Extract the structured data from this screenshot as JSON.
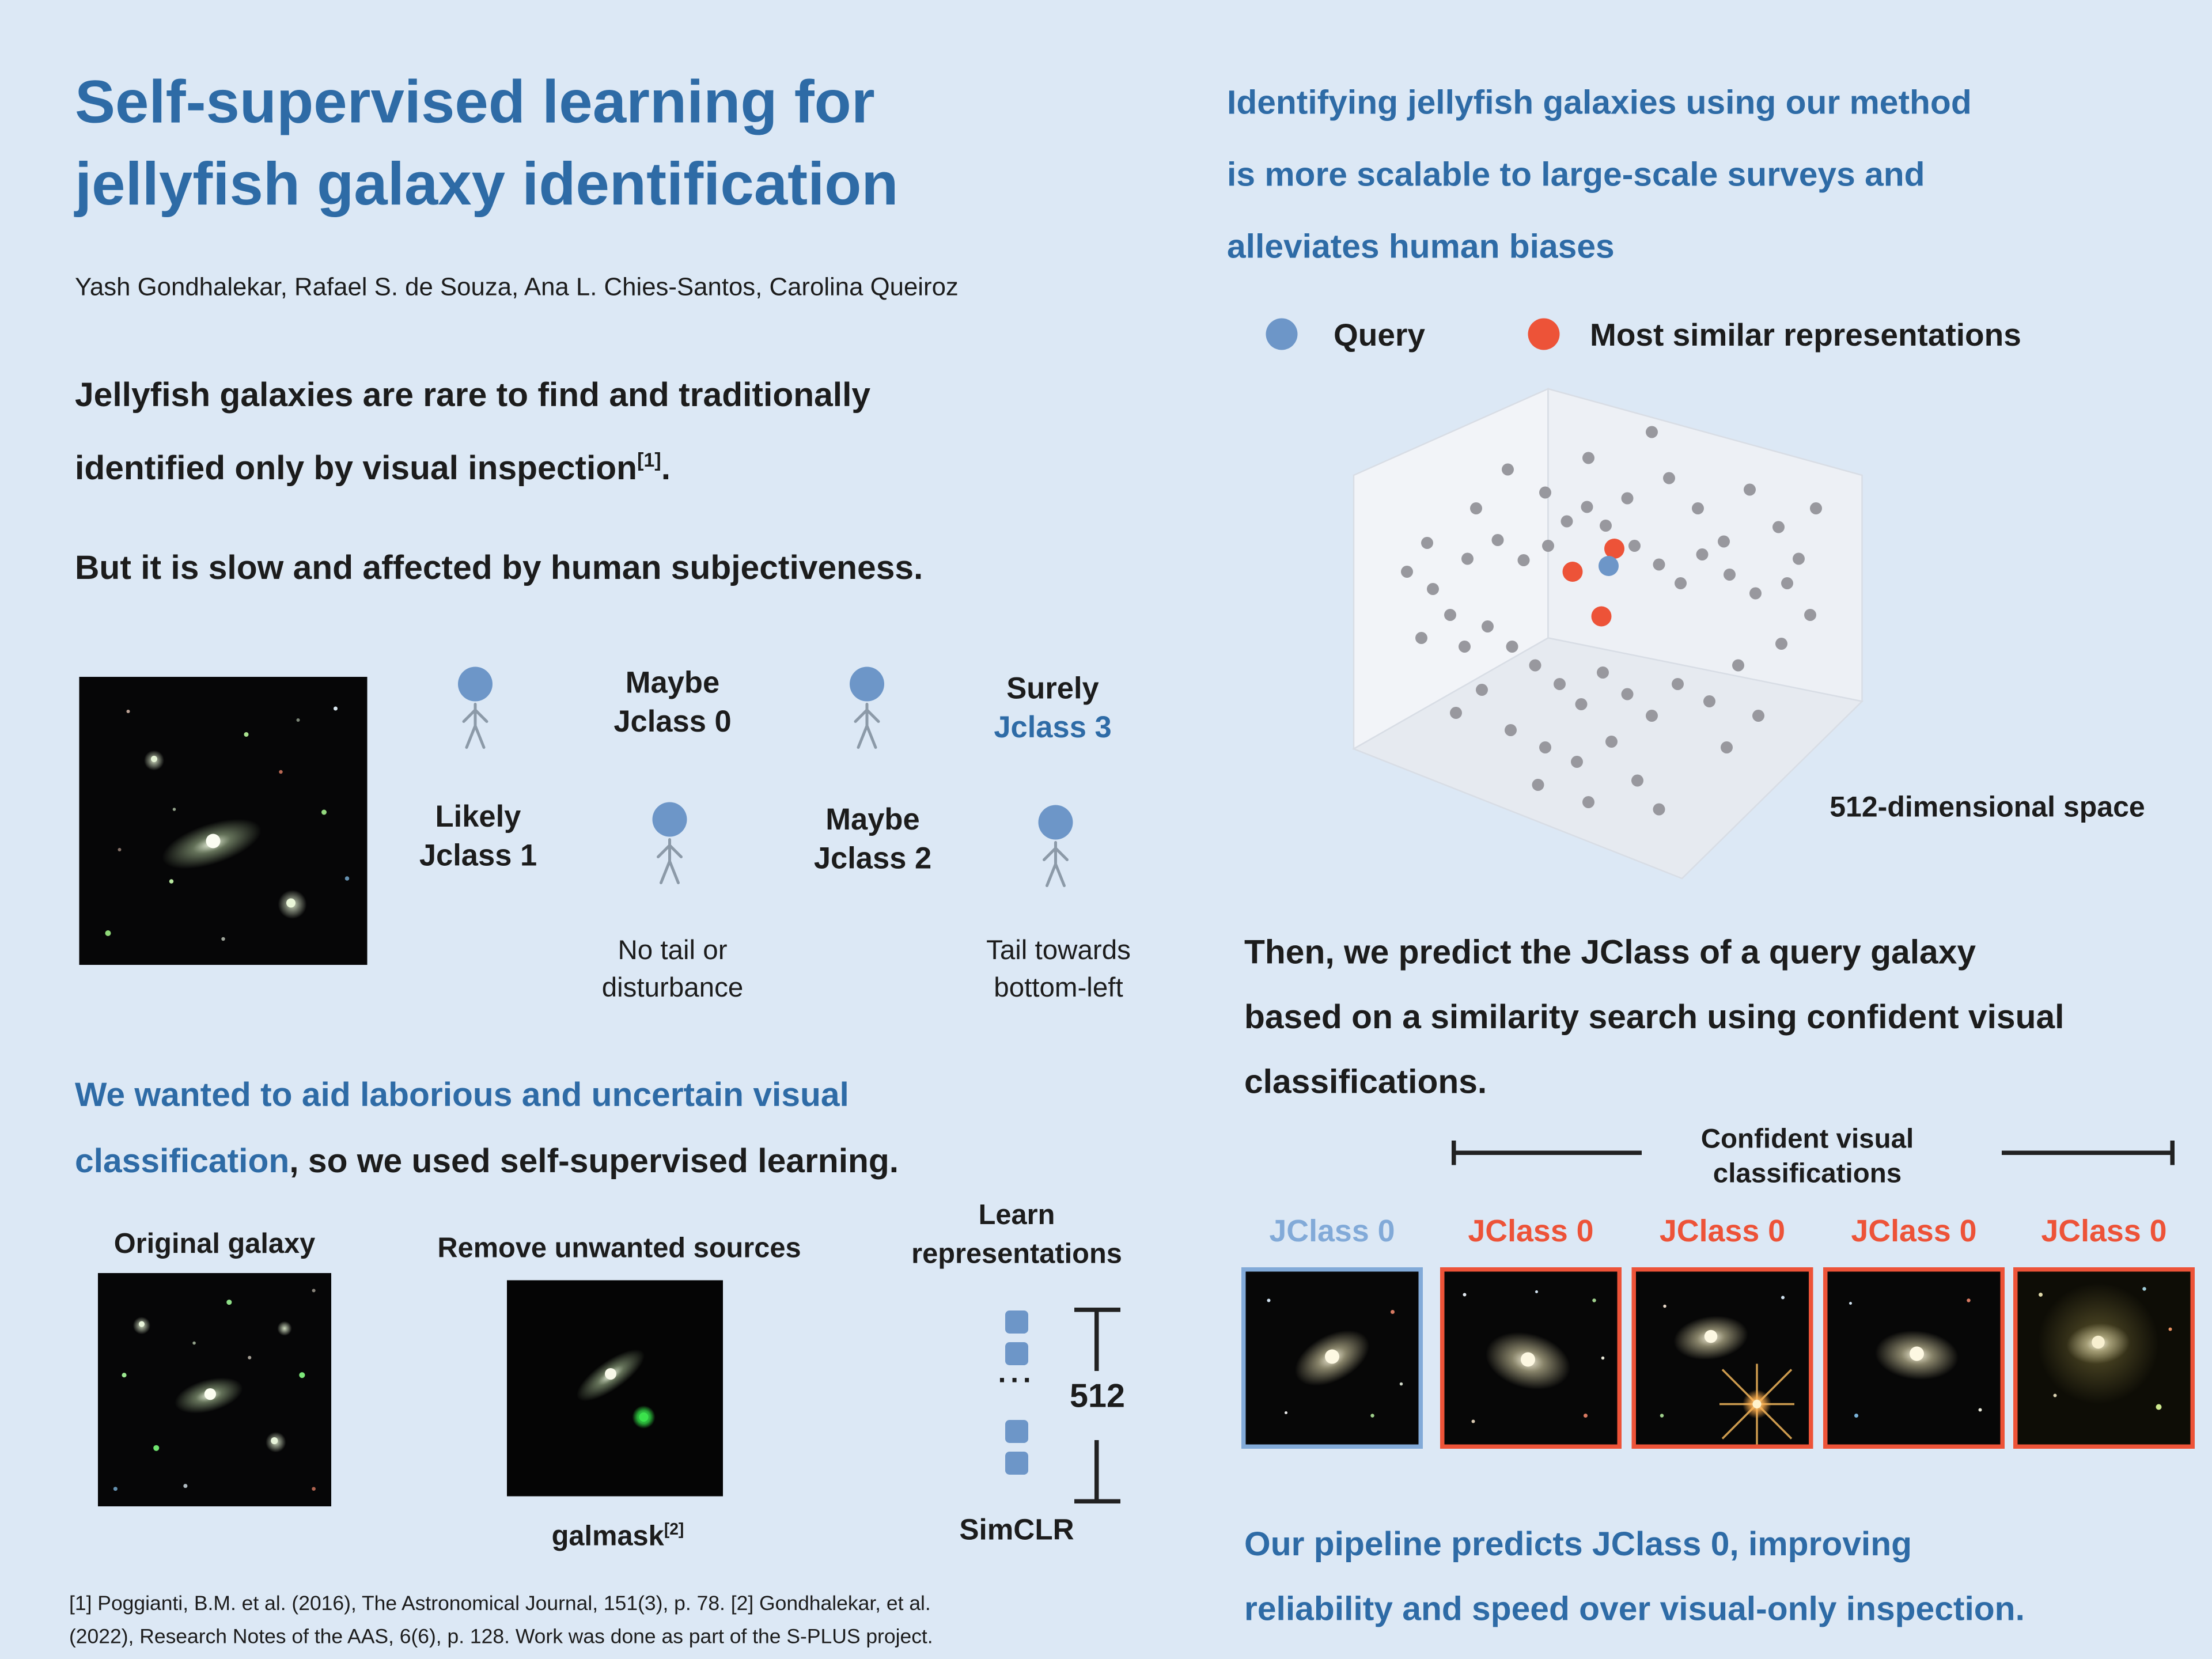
{
  "colors": {
    "background": "#dce8f5",
    "accent_blue": "#2e6ba6",
    "marker_blue": "#6d96c8",
    "marker_orange": "#ed5338",
    "light_blue": "#82aad8",
    "text_dark": "#1c1c1c"
  },
  "left": {
    "title": "Self-supervised learning for\njellyfish galaxy identification",
    "authors": "Yash Gondhalekar, Rafael S. de Souza, Ana L. Chies-Santos, Carolina Queiroz",
    "intro": {
      "text": "Jellyfish galaxies are rare to find and traditionally\nidentified only by visual inspection",
      "ref": "[1]",
      "tail": "."
    },
    "subjectiveness": "But it is slow and affected by human subjectiveness.",
    "annotators": {
      "label_row1_a": "Maybe\nJclass 0",
      "label_row1_b_line1": "Surely",
      "label_row1_b_line2": "Jclass 3",
      "label_row2_a": "Likely\nJclass 1",
      "label_row2_b": "Maybe\nJclass 2",
      "caption_a": "No tail or\ndisturbance",
      "caption_b": "Tail towards\nbottom-left"
    },
    "claim": {
      "highlight": "We wanted to aid laborious and uncertain visual\nclassification",
      "rest": ", so we used self-supervised learning."
    },
    "pipeline": {
      "step1_label": "Original galaxy",
      "step2_label": "Remove unwanted sources",
      "step2_tool": "galmask",
      "step2_ref": "[2]",
      "step3_label": "Learn\nrepresentations",
      "ellipsis": "···",
      "dimension": "512",
      "method": "SimCLR"
    },
    "footnote": "[1] Poggianti, B.M. et al. (2016), The Astronomical Journal, 151(3), p. 78. [2] Gondhalekar, et al.\n(2022), Research Notes of the AAS, 6(6), p. 128. Work was done as part of the S-PLUS project."
  },
  "right": {
    "heading": "Identifying jellyfish galaxies using our method\nis more scalable to large-scale surveys and\nalleviates human biases",
    "legend": {
      "query": "Query",
      "similar": "Most similar representations"
    },
    "embedding": {
      "space_label": "512-dimensional space",
      "gray_points": [
        [
          130,
          95
        ],
        [
          152,
          68
        ],
        [
          178,
          84
        ],
        [
          208,
          60
        ],
        [
          252,
          42
        ],
        [
          235,
          88
        ],
        [
          264,
          74
        ],
        [
          284,
          95
        ],
        [
          302,
          118
        ],
        [
          320,
          82
        ],
        [
          340,
          108
        ],
        [
          354,
          130
        ],
        [
          366,
          95
        ],
        [
          124,
          130
        ],
        [
          145,
          117
        ],
        [
          163,
          131
        ],
        [
          180,
          121
        ],
        [
          193,
          104
        ],
        [
          207,
          94
        ],
        [
          220,
          107
        ],
        [
          240,
          121
        ],
        [
          257,
          134
        ],
        [
          272,
          147
        ],
        [
          287,
          127
        ],
        [
          306,
          141
        ],
        [
          324,
          154
        ],
        [
          346,
          147
        ],
        [
          100,
          151
        ],
        [
          112,
          169
        ],
        [
          92,
          185
        ],
        [
          122,
          191
        ],
        [
          138,
          177
        ],
        [
          155,
          191
        ],
        [
          171,
          204
        ],
        [
          188,
          217
        ],
        [
          203,
          231
        ],
        [
          218,
          209
        ],
        [
          235,
          224
        ],
        [
          252,
          239
        ],
        [
          270,
          217
        ],
        [
          292,
          229
        ],
        [
          312,
          204
        ],
        [
          154,
          249
        ],
        [
          178,
          261
        ],
        [
          200,
          271
        ],
        [
          224,
          257
        ],
        [
          242,
          284
        ],
        [
          208,
          299
        ],
        [
          257,
          304
        ],
        [
          173,
          287
        ],
        [
          134,
          221
        ],
        [
          116,
          237
        ],
        [
          304,
          261
        ],
        [
          326,
          239
        ],
        [
          342,
          189
        ],
        [
          362,
          169
        ],
        [
          96,
          119
        ],
        [
          82,
          139
        ]
      ],
      "query_point": [
        222,
        135
      ],
      "similar_points": [
        [
          197,
          139
        ],
        [
          226,
          123
        ],
        [
          217,
          170
        ]
      ]
    },
    "predict_text": "Then, we predict the JClass of a query galaxy\nbased on a similarity search using confident visual\nclassifications.",
    "confident_label": "Confident visual\nclassifications",
    "jclass_labels": [
      "JClass 0",
      "JClass 0",
      "JClass 0",
      "JClass 0",
      "JClass 0"
    ],
    "conclusion": "Our pipeline predicts JClass 0, improving\nreliability and speed over visual-only inspection."
  }
}
